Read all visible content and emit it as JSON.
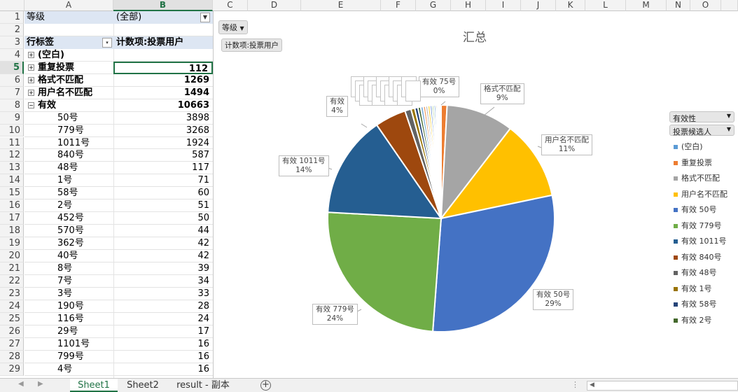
{
  "columns": [
    "A",
    "B",
    "C",
    "D",
    "E",
    "F",
    "G",
    "H",
    "I",
    "J",
    "K",
    "L",
    "M",
    "N",
    "O"
  ],
  "selected_column": "B",
  "selected_row": "5",
  "filter": {
    "label": "等级",
    "value": "(全部)"
  },
  "pivot": {
    "row_label_header": "行标签",
    "value_header": "计数项:投票用户",
    "groups": [
      {
        "label": "(空白)",
        "value": "",
        "expander": "+"
      },
      {
        "label": "重复投票",
        "value": "112",
        "expander": "+"
      },
      {
        "label": "格式不匹配",
        "value": "1269",
        "expander": "+"
      },
      {
        "label": "用户名不匹配",
        "value": "1494",
        "expander": "+"
      },
      {
        "label": "有效",
        "value": "10663",
        "expander": "−"
      }
    ],
    "children": [
      {
        "label": "50号",
        "value": "3898"
      },
      {
        "label": "779号",
        "value": "3268"
      },
      {
        "label": "1011号",
        "value": "1924"
      },
      {
        "label": "840号",
        "value": "587"
      },
      {
        "label": "48号",
        "value": "117"
      },
      {
        "label": "1号",
        "value": "71"
      },
      {
        "label": "58号",
        "value": "60"
      },
      {
        "label": "2号",
        "value": "51"
      },
      {
        "label": "452号",
        "value": "50"
      },
      {
        "label": "570号",
        "value": "44"
      },
      {
        "label": "362号",
        "value": "42"
      },
      {
        "label": "40号",
        "value": "42"
      },
      {
        "label": "8号",
        "value": "39"
      },
      {
        "label": "7号",
        "value": "34"
      },
      {
        "label": "3号",
        "value": "33"
      },
      {
        "label": "190号",
        "value": "28"
      },
      {
        "label": "116号",
        "value": "24"
      },
      {
        "label": "29号",
        "value": "17"
      },
      {
        "label": "1101号",
        "value": "16"
      },
      {
        "label": "799号",
        "value": "16"
      },
      {
        "label": "4号",
        "value": "16"
      }
    ]
  },
  "chart": {
    "field_button_level": "等级",
    "field_button_value": "计数项:投票用户",
    "legend_field_1": "有效性",
    "legend_field_2": "投票候选人",
    "data_labels": [
      {
        "name": "有效 75号",
        "pct": "0%"
      },
      {
        "name": "格式不匹配",
        "pct": "9%"
      },
      {
        "name": "用户名不匹配",
        "pct": "11%"
      },
      {
        "name": "有效 50号",
        "pct": "29%"
      },
      {
        "name": "有效 779号",
        "pct": "24%"
      },
      {
        "name": "有效 1011号",
        "pct": "14%"
      },
      {
        "name": "有效",
        "pct": "4%"
      }
    ]
  },
  "chart_data": {
    "type": "pie",
    "title": "汇总",
    "categories": [
      "(空白)",
      "重复投票",
      "格式不匹配",
      "用户名不匹配",
      "有效 50号",
      "有效 779号",
      "有效 1011号",
      "有效 840号",
      "有效 48号",
      "有效 1号",
      "有效 58号",
      "有效 2号"
    ],
    "values": [
      0,
      112,
      1269,
      1494,
      3898,
      3268,
      1924,
      587,
      117,
      71,
      60,
      51
    ],
    "other_small_values": [
      50,
      44,
      42,
      42,
      39,
      34,
      33,
      28,
      24,
      17,
      16,
      16
    ],
    "colors": [
      "#5b9bd5",
      "#ed7d31",
      "#a5a5a5",
      "#ffc000",
      "#4472c4",
      "#70ad47",
      "#255e91",
      "#9e480e",
      "#636363",
      "#997300",
      "#264478",
      "#43682b"
    ],
    "legend_position": "right"
  },
  "tabs": [
    "Sheet1",
    "Sheet2",
    "result - 副本"
  ],
  "active_tab": "Sheet1",
  "add_sheet_symbol": "+"
}
